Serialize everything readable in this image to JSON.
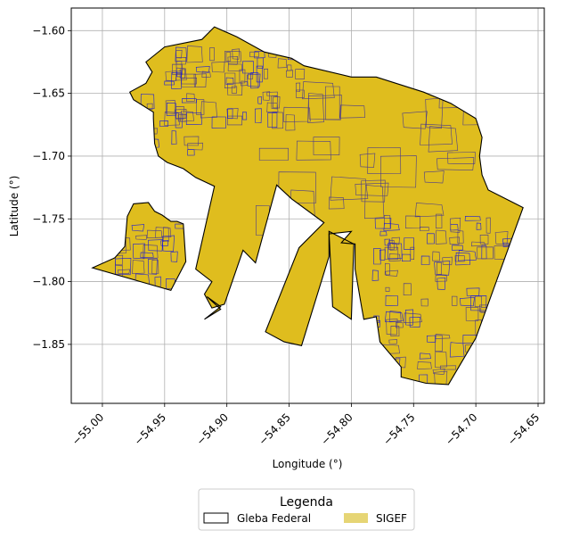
{
  "chart_data": {
    "type": "map",
    "xlabel": "Longitude (°)",
    "ylabel": "Latitude (°)",
    "xlim": [
      -55.025,
      -54.645
    ],
    "ylim": [
      -1.897,
      -1.582
    ],
    "x_ticks": [
      {
        "value": -55.0,
        "label": "−55.00"
      },
      {
        "value": -54.95,
        "label": "−54.95"
      },
      {
        "value": -54.9,
        "label": "−54.90"
      },
      {
        "value": -54.85,
        "label": "−54.85"
      },
      {
        "value": -54.8,
        "label": "−54.80"
      },
      {
        "value": -54.75,
        "label": "−54.75"
      },
      {
        "value": -54.7,
        "label": "−54.70"
      },
      {
        "value": -54.65,
        "label": "−54.65"
      }
    ],
    "y_ticks": [
      {
        "value": -1.6,
        "label": "−1.60"
      },
      {
        "value": -1.65,
        "label": "−1.65"
      },
      {
        "value": -1.7,
        "label": "−1.70"
      },
      {
        "value": -1.75,
        "label": "−1.75"
      },
      {
        "value": -1.8,
        "label": "−1.80"
      },
      {
        "value": -1.85,
        "label": "−1.85"
      }
    ],
    "grid": true,
    "legend": {
      "title": "Legenda",
      "placement": "bottom-center",
      "entries": [
        {
          "label": "Gleba Federal",
          "style": "outline",
          "color": "#000000"
        },
        {
          "label": "SIGEF",
          "style": "fill",
          "color": "#e6d575"
        }
      ]
    },
    "colors": {
      "gleba_fill": "#dfbd1e",
      "gleba_edge": "#000000",
      "parcel_edge": "#4a3a8c",
      "dense_parcel_edge": "#1a1adc",
      "grid": "#b0b0b0"
    },
    "layers": [
      {
        "name": "Gleba Federal",
        "polygons": [
          {
            "name": "main",
            "coords": [
              [
                -54.965,
                -1.625
              ],
              [
                -54.95,
                -1.613
              ],
              [
                -54.92,
                -1.607
              ],
              [
                -54.91,
                -1.597
              ],
              [
                -54.892,
                -1.605
              ],
              [
                -54.87,
                -1.617
              ],
              [
                -54.848,
                -1.622
              ],
              [
                -54.838,
                -1.628
              ],
              [
                -54.8,
                -1.637
              ],
              [
                -54.78,
                -1.637
              ],
              [
                -54.742,
                -1.649
              ],
              [
                -54.72,
                -1.658
              ],
              [
                -54.7,
                -1.67
              ],
              [
                -54.695,
                -1.685
              ],
              [
                -54.697,
                -1.7
              ],
              [
                -54.695,
                -1.715
              ],
              [
                -54.69,
                -1.727
              ],
              [
                -54.67,
                -1.737
              ],
              [
                -54.662,
                -1.741
              ],
              [
                -54.7,
                -1.845
              ],
              [
                -54.722,
                -1.882
              ],
              [
                -54.74,
                -1.881
              ],
              [
                -54.76,
                -1.876
              ],
              [
                -54.76,
                -1.868
              ],
              [
                -54.777,
                -1.848
              ],
              [
                -54.78,
                -1.828
              ],
              [
                -54.79,
                -1.83
              ],
              [
                -54.792,
                -1.819
              ],
              [
                -54.797,
                -1.79
              ],
              [
                -54.797,
                -1.77
              ],
              [
                -54.808,
                -1.769
              ],
              [
                -54.8,
                -1.76
              ],
              [
                -54.818,
                -1.762
              ],
              [
                -54.818,
                -1.78
              ],
              [
                -54.84,
                -1.851
              ],
              [
                -54.854,
                -1.848
              ],
              [
                -54.869,
                -1.84
              ],
              [
                -54.842,
                -1.773
              ],
              [
                -54.822,
                -1.753
              ],
              [
                -54.848,
                -1.734
              ],
              [
                -54.86,
                -1.723
              ],
              [
                -54.877,
                -1.785
              ],
              [
                -54.887,
                -1.775
              ],
              [
                -54.902,
                -1.818
              ],
              [
                -54.912,
                -1.821
              ],
              [
                -54.918,
                -1.81
              ],
              [
                -54.912,
                -1.8
              ],
              [
                -54.925,
                -1.79
              ],
              [
                -54.91,
                -1.724
              ],
              [
                -54.925,
                -1.717
              ],
              [
                -54.935,
                -1.71
              ],
              [
                -54.948,
                -1.705
              ],
              [
                -54.955,
                -1.7
              ],
              [
                -54.958,
                -1.69
              ],
              [
                -54.959,
                -1.67
              ],
              [
                -54.959,
                -1.665
              ],
              [
                -54.975,
                -1.655
              ],
              [
                -54.978,
                -1.649
              ],
              [
                -54.965,
                -1.642
              ],
              [
                -54.96,
                -1.633
              ]
            ]
          },
          {
            "name": "west-lobe",
            "coords": [
              [
                -55.008,
                -1.789
              ],
              [
                -54.99,
                -1.781
              ],
              [
                -54.982,
                -1.772
              ],
              [
                -54.98,
                -1.748
              ],
              [
                -54.975,
                -1.738
              ],
              [
                -54.963,
                -1.737
              ],
              [
                -54.958,
                -1.744
              ],
              [
                -54.952,
                -1.747
              ],
              [
                -54.945,
                -1.752
              ],
              [
                -54.94,
                -1.752
              ],
              [
                -54.935,
                -1.754
              ],
              [
                -54.933,
                -1.784
              ],
              [
                -54.945,
                -1.807
              ]
            ]
          },
          {
            "name": "southwest-strip",
            "coords": [
              [
                -54.916,
                -1.812
              ],
              [
                -54.905,
                -1.82
              ],
              [
                -54.918,
                -1.83
              ],
              [
                -54.905,
                -1.822
              ]
            ]
          },
          {
            "name": "south-strip",
            "coords": [
              [
                -54.818,
                -1.76
              ],
              [
                -54.798,
                -1.77
              ],
              [
                -54.8,
                -1.83
              ],
              [
                -54.815,
                -1.82
              ]
            ]
          }
        ]
      },
      {
        "name": "SIGEF",
        "parcel_groups": [
          {
            "name": "north-cluster",
            "lon_range": [
              -54.95,
              -54.84
            ],
            "lat_range": [
              -1.67,
              -1.612
            ],
            "count": 70
          },
          {
            "name": "west-cluster",
            "lon_range": [
              -54.975,
              -54.93
            ],
            "lat_range": [
              -1.7,
              -1.65
            ],
            "count": 20
          },
          {
            "name": "lobe-cluster",
            "lon_range": [
              -54.995,
              -54.94
            ],
            "lat_range": [
              -1.8,
              -1.75
            ],
            "count": 25
          },
          {
            "name": "east-cluster",
            "lon_range": [
              -54.785,
              -54.675
            ],
            "lat_range": [
              -1.88,
              -1.745
            ],
            "count": 110
          },
          {
            "name": "interior",
            "lon_range": [
              -54.88,
              -54.7
            ],
            "lat_range": [
              -1.74,
              -1.64
            ],
            "count": 30
          }
        ]
      }
    ]
  }
}
